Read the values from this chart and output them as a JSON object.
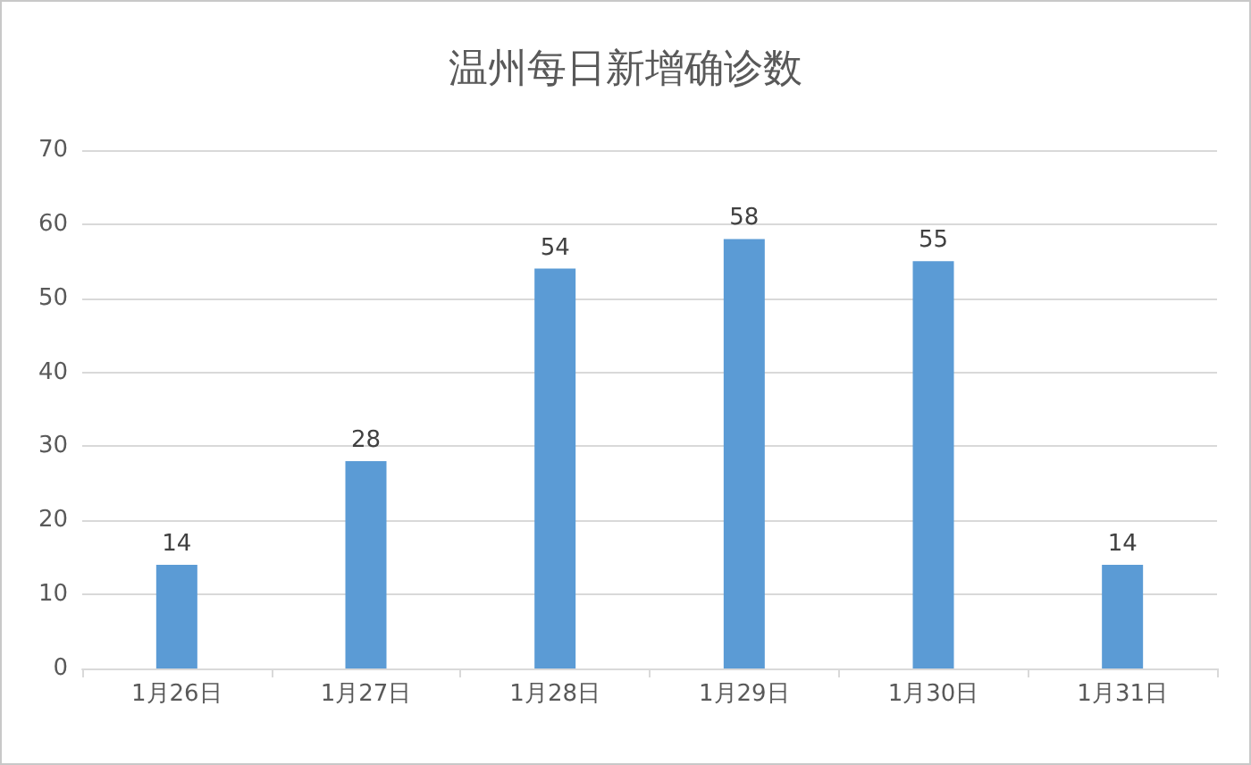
{
  "chart_data": {
    "type": "bar",
    "title": "温州每日新增确诊数",
    "categories": [
      "1月26日",
      "1月27日",
      "1月28日",
      "1月29日",
      "1月30日",
      "1月31日"
    ],
    "values": [
      14,
      28,
      54,
      58,
      55,
      14
    ],
    "color": "#5b9bd5",
    "ylim": [
      0,
      70
    ],
    "yticks": [
      0,
      10,
      20,
      30,
      40,
      50,
      60,
      70
    ],
    "grid": "y",
    "data_labels": true
  }
}
